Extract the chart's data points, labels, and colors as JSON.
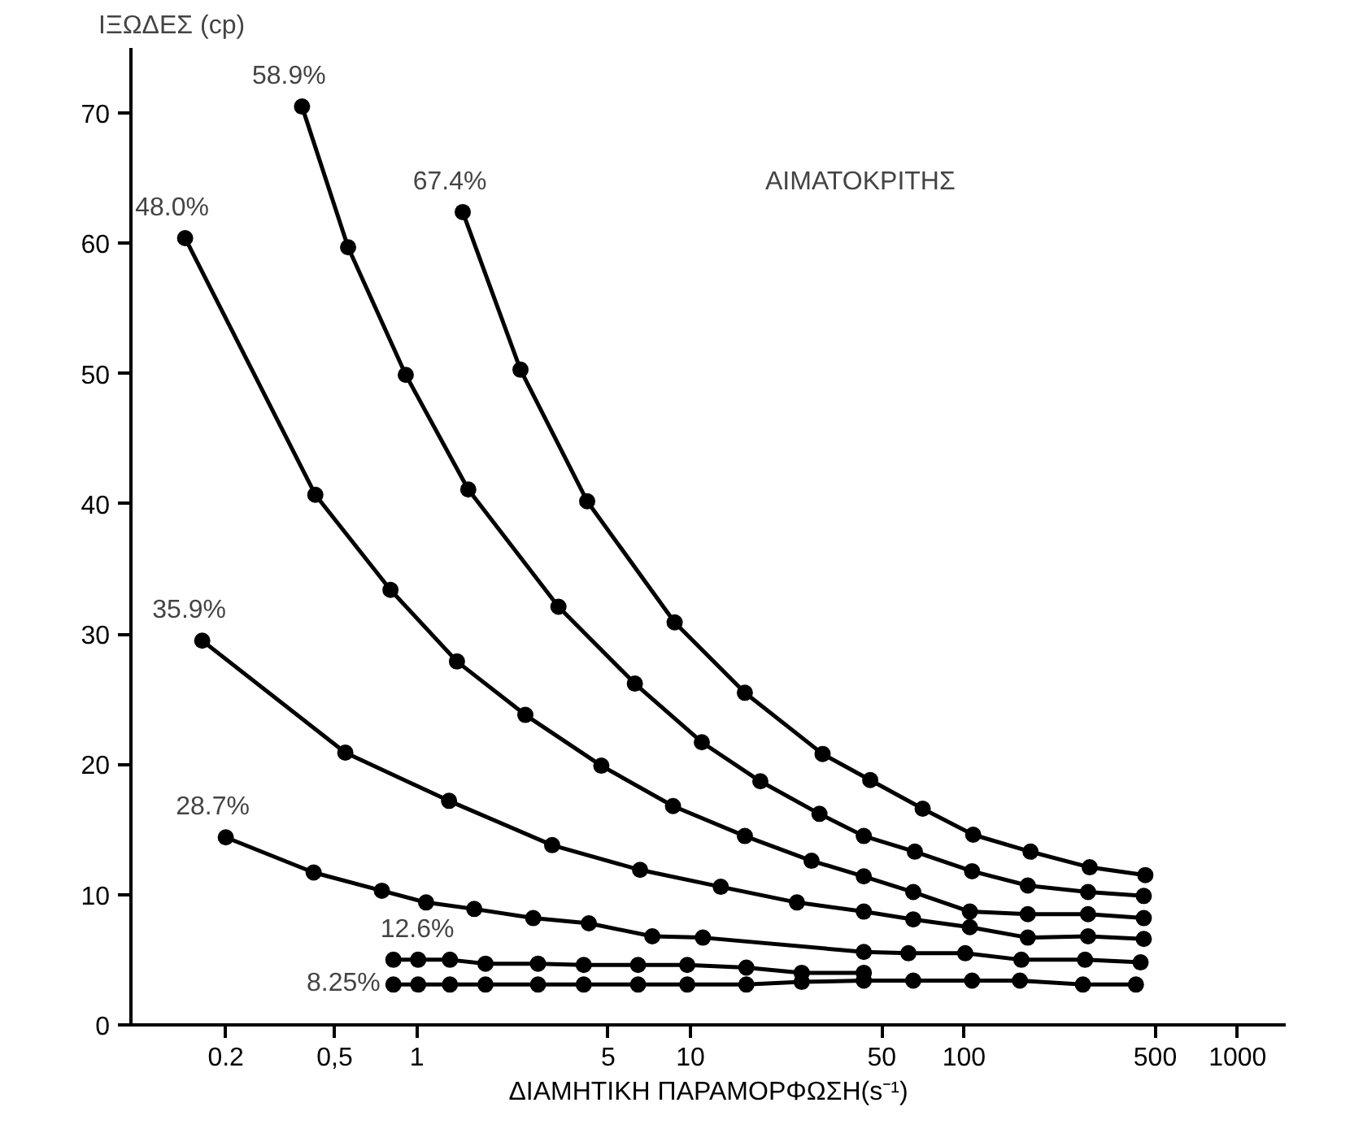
{
  "chart_data": {
    "type": "line",
    "ylabel": "ΙΞΩΔΕΣ (cp)",
    "xlabel": "ΔΙΑΜΗΤΙΚΗ ΠΑΡΑΜΟΡΦΩΣΗ(s⁻¹)",
    "annotations": [
      "ΑΙΜΑΤΟΚΡΙΤΗΣ"
    ],
    "log": "x",
    "xlim": [
      0.09,
      1500
    ],
    "ylim": [
      0,
      75
    ],
    "xticks": [
      0.2,
      {
        "value": 0.5,
        "label": "0,5"
      },
      1,
      5,
      10,
      50,
      100,
      500,
      1000
    ],
    "yticks": [
      0,
      10,
      20,
      30,
      40,
      50,
      60,
      70
    ],
    "grid": false,
    "marker": "circle",
    "line_style": "solid",
    "series": [
      {
        "name": "67.4%",
        "color": "#000000",
        "x": [
          1.47,
          2.39,
          4.19,
          8.75,
          15.8,
          30.4,
          45.4,
          70.6,
          108,
          175,
          288,
          460
        ],
        "values": [
          62.4,
          50.3,
          40.2,
          30.9,
          25.5,
          20.8,
          18.8,
          16.6,
          14.6,
          13.3,
          12.1,
          11.5
        ]
      },
      {
        "name": "58.9%",
        "color": "#000000",
        "x": [
          0.38,
          0.56,
          0.91,
          1.54,
          3.29,
          6.26,
          11.0,
          18.0,
          29.6,
          43.0,
          66.1,
          107,
          171,
          284,
          454
        ],
        "values": [
          70.5,
          59.7,
          49.9,
          41.1,
          32.1,
          26.2,
          21.7,
          18.7,
          16.2,
          14.5,
          13.3,
          11.8,
          10.7,
          10.2,
          9.9
        ]
      },
      {
        "name": "48.0%",
        "color": "#000000",
        "x": [
          0.142,
          0.425,
          0.8,
          1.4,
          2.49,
          4.72,
          8.63,
          15.8,
          27.7,
          43.0,
          65.2,
          105,
          171,
          284,
          454
        ],
        "values": [
          60.4,
          40.7,
          33.4,
          27.9,
          23.8,
          19.9,
          16.8,
          14.5,
          12.6,
          11.4,
          10.2,
          8.7,
          8.5,
          8.5,
          8.2
        ]
      },
      {
        "name": "35.9%",
        "color": "#000000",
        "x": [
          0.164,
          0.547,
          1.31,
          3.12,
          6.54,
          12.9,
          24.5,
          43.0,
          65.2,
          105,
          171,
          284,
          454
        ],
        "values": [
          29.5,
          20.9,
          17.2,
          13.8,
          11.9,
          10.6,
          9.4,
          8.7,
          8.1,
          7.5,
          6.7,
          6.8,
          6.6
        ]
      },
      {
        "name": "28.7%",
        "color": "#000000",
        "x": [
          0.2,
          0.419,
          0.744,
          1.08,
          1.62,
          2.66,
          4.25,
          7.25,
          11.1,
          43.0,
          62.6,
          101,
          162,
          277,
          442
        ],
        "values": [
          14.4,
          11.7,
          10.3,
          9.4,
          8.9,
          8.2,
          7.8,
          6.8,
          6.7,
          5.6,
          5.5,
          5.5,
          5.0,
          5.0,
          4.8
        ]
      },
      {
        "name": "12.6%",
        "color": "#000000",
        "x": [
          0.82,
          1.01,
          1.32,
          1.78,
          2.77,
          4.07,
          6.43,
          9.73,
          16.0,
          25.5,
          43.0
        ],
        "values": [
          5.0,
          5.0,
          5.0,
          4.7,
          4.7,
          4.6,
          4.6,
          4.6,
          4.4,
          4.0,
          4.0
        ]
      },
      {
        "name": "8.25%",
        "color": "#000000",
        "x": [
          0.82,
          1.01,
          1.32,
          1.78,
          2.77,
          4.07,
          6.43,
          9.73,
          16.0,
          25.5,
          43.0,
          65.2,
          107,
          160,
          272,
          425
        ],
        "values": [
          3.1,
          3.1,
          3.1,
          3.1,
          3.1,
          3.1,
          3.1,
          3.1,
          3.1,
          3.3,
          3.4,
          3.4,
          3.4,
          3.4,
          3.1,
          3.1
        ]
      }
    ]
  }
}
